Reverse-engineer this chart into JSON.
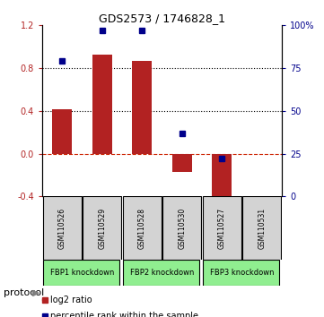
{
  "title": "GDS2573 / 1746828_1",
  "samples": [
    "GSM110526",
    "GSM110529",
    "GSM110528",
    "GSM110530",
    "GSM110527",
    "GSM110531"
  ],
  "log2_ratio": [
    0.42,
    0.93,
    0.87,
    -0.17,
    -0.45,
    0.0
  ],
  "percentile_rank": [
    79,
    97,
    97,
    37,
    22,
    null
  ],
  "groups": [
    {
      "label": "FBP1 knockdown",
      "indices": [
        0,
        1
      ],
      "color": "#90EE90"
    },
    {
      "label": "FBP2 knockdown",
      "indices": [
        2,
        3
      ],
      "color": "#90EE90"
    },
    {
      "label": "FBP3 knockdown",
      "indices": [
        4,
        5
      ],
      "color": "#90EE90"
    }
  ],
  "bar_color": "#b22222",
  "dot_color": "#00008b",
  "ylim_left": [
    -0.4,
    1.2
  ],
  "ylim_right": [
    0,
    100
  ],
  "yticks_left": [
    -0.4,
    0.0,
    0.4,
    0.8,
    1.2
  ],
  "yticks_right": [
    0,
    25,
    50,
    75,
    100
  ],
  "hlines": [
    0.0,
    0.4,
    0.8
  ],
  "hline_styles": [
    "dashed",
    "dotted",
    "dotted"
  ],
  "hline_colors": [
    "#cc2200",
    "#000000",
    "#000000"
  ],
  "protocol_label": "protocol",
  "legend_items": [
    {
      "label": "log2 ratio",
      "color": "#b22222"
    },
    {
      "label": "percentile rank within the sample",
      "color": "#00008b"
    }
  ],
  "sample_box_color": "#d3d3d3",
  "group_box_color": "#90EE90"
}
